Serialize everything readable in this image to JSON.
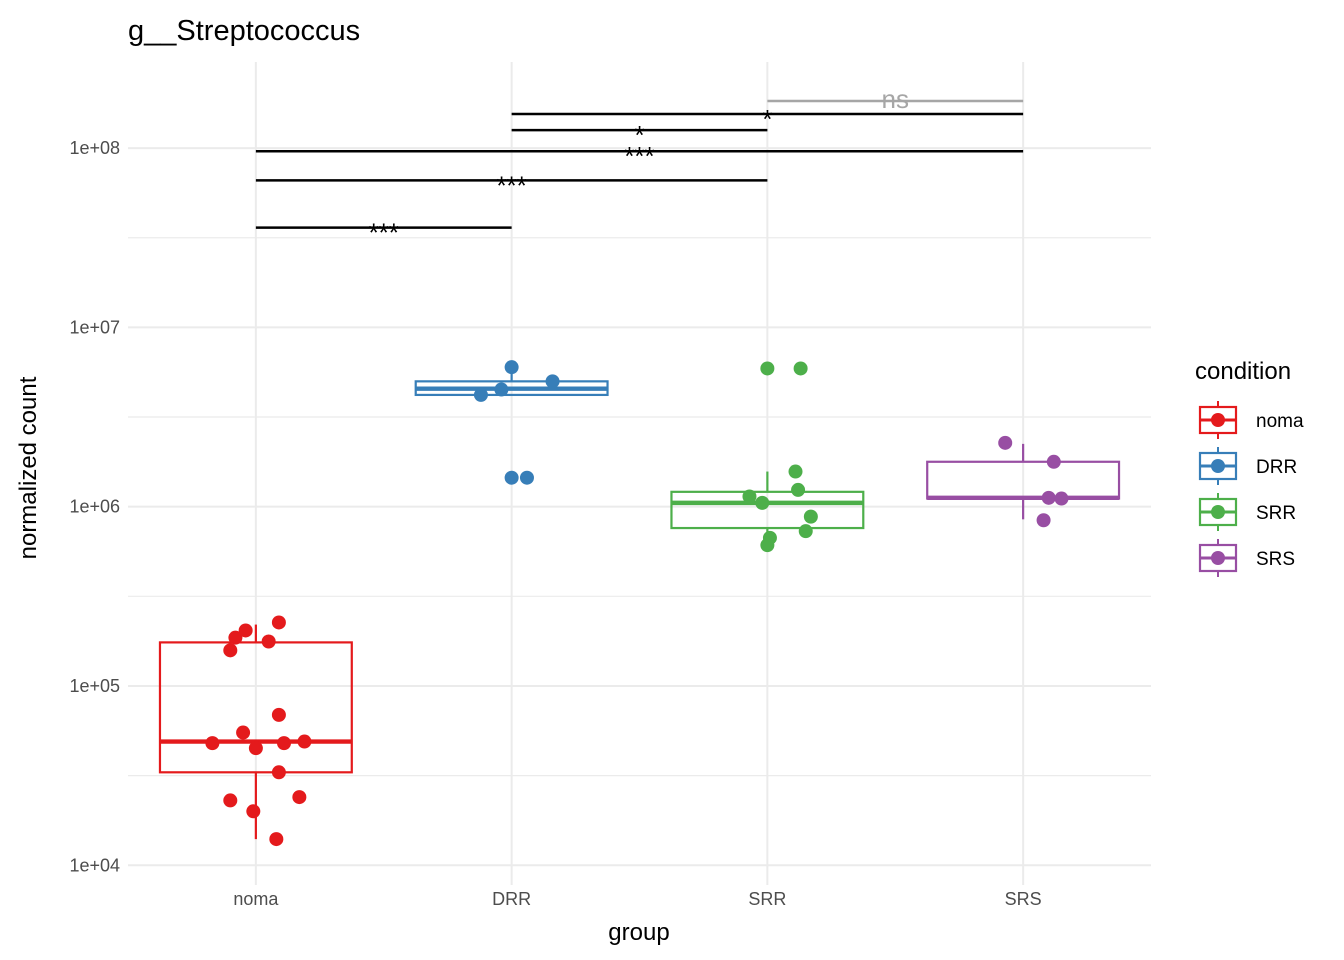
{
  "chart_data": {
    "type": "box",
    "title": "g__Streptococcus",
    "xlabel": "group",
    "ylabel": "normalized count",
    "y_scale": "log10",
    "ylim_log10": [
      3.89,
      8.48
    ],
    "y_ticks": [
      {
        "value": 10000,
        "label": "1e+04"
      },
      {
        "value": 100000,
        "label": "1e+05"
      },
      {
        "value": 1000000,
        "label": "1e+06"
      },
      {
        "value": 10000000,
        "label": "1e+07"
      },
      {
        "value": 100000000,
        "label": "1e+08"
      }
    ],
    "categories": [
      "noma",
      "DRR",
      "SRR",
      "SRS"
    ],
    "grid": true,
    "legend": {
      "title": "condition",
      "position": "right",
      "entries": [
        {
          "label": "noma",
          "color": "#E41A1C"
        },
        {
          "label": "DRR",
          "color": "#377EB8"
        },
        {
          "label": "SRR",
          "color": "#4DAF4A"
        },
        {
          "label": "SRS",
          "color": "#984EA3"
        }
      ]
    },
    "series": [
      {
        "name": "noma",
        "color": "#E41A1C",
        "box": {
          "whisker_low": 14000,
          "q1": 33000,
          "median": 49000,
          "q3": 175000,
          "whisker_high": 220000
        },
        "points": [
          {
            "jitter": -0.1,
            "value": 158000
          },
          {
            "jitter": -0.08,
            "value": 186000
          },
          {
            "jitter": -0.04,
            "value": 204000
          },
          {
            "jitter": 0.09,
            "value": 226000
          },
          {
            "jitter": 0.05,
            "value": 177000
          },
          {
            "jitter": 0.09,
            "value": 69000
          },
          {
            "jitter": -0.05,
            "value": 55000
          },
          {
            "jitter": -0.17,
            "value": 48000
          },
          {
            "jitter": -0.0,
            "value": 45000
          },
          {
            "jitter": 0.11,
            "value": 48000
          },
          {
            "jitter": 0.19,
            "value": 49000
          },
          {
            "jitter": 0.09,
            "value": 33000
          },
          {
            "jitter": -0.1,
            "value": 23000
          },
          {
            "jitter": -0.01,
            "value": 20000
          },
          {
            "jitter": 0.17,
            "value": 24000
          },
          {
            "jitter": 0.08,
            "value": 14000
          }
        ]
      },
      {
        "name": "DRR",
        "color": "#377EB8",
        "box": {
          "whisker_low": 4200000,
          "q1": 4200000,
          "median": 4550000,
          "q3": 5000000,
          "whisker_high": 6000000
        },
        "points": [
          {
            "jitter": 0.0,
            "value": 6000000
          },
          {
            "jitter": 0.16,
            "value": 5000000
          },
          {
            "jitter": -0.04,
            "value": 4500000
          },
          {
            "jitter": -0.12,
            "value": 4200000
          },
          {
            "jitter": 0.0,
            "value": 1450000
          },
          {
            "jitter": 0.06,
            "value": 1450000
          }
        ]
      },
      {
        "name": "SRR",
        "color": "#4DAF4A",
        "box": {
          "whisker_low": 610000,
          "q1": 760000,
          "median": 1050000,
          "q3": 1210000,
          "whisker_high": 1570000
        },
        "points": [
          {
            "jitter": 0.0,
            "value": 5900000
          },
          {
            "jitter": 0.13,
            "value": 5900000
          },
          {
            "jitter": 0.11,
            "value": 1570000
          },
          {
            "jitter": 0.12,
            "value": 1240000
          },
          {
            "jitter": -0.07,
            "value": 1140000
          },
          {
            "jitter": -0.02,
            "value": 1050000
          },
          {
            "jitter": 0.17,
            "value": 880000
          },
          {
            "jitter": 0.15,
            "value": 730000
          },
          {
            "jitter": 0.01,
            "value": 670000
          },
          {
            "jitter": 0.0,
            "value": 610000
          }
        ]
      },
      {
        "name": "SRS",
        "color": "#984EA3",
        "box": {
          "whisker_low": 850000,
          "q1": 1110000,
          "median": 1120000,
          "q3": 1780000,
          "whisker_high": 2240000
        },
        "points": [
          {
            "jitter": -0.07,
            "value": 2270000
          },
          {
            "jitter": 0.12,
            "value": 1780000
          },
          {
            "jitter": 0.1,
            "value": 1120000
          },
          {
            "jitter": 0.15,
            "value": 1110000
          },
          {
            "jitter": 0.08,
            "value": 840000
          }
        ]
      }
    ],
    "comparisons": [
      {
        "group1": "noma",
        "group2": "DRR",
        "label": "***",
        "y_value": 36000000,
        "color": "#000000"
      },
      {
        "group1": "noma",
        "group2": "SRR",
        "label": "***",
        "y_value": 66000000,
        "color": "#000000"
      },
      {
        "group1": "noma",
        "group2": "SRS",
        "label": "***",
        "y_value": 96000000,
        "color": "#000000"
      },
      {
        "group1": "DRR",
        "group2": "SRR",
        "label": "*",
        "y_value": 126000000,
        "color": "#000000"
      },
      {
        "group1": "DRR",
        "group2": "SRS",
        "label": "*",
        "y_value": 155000000,
        "color": "#000000"
      },
      {
        "group1": "SRR",
        "group2": "SRS",
        "label": "ns",
        "y_value": 183000000,
        "color": "#A6A6A6"
      }
    ]
  }
}
